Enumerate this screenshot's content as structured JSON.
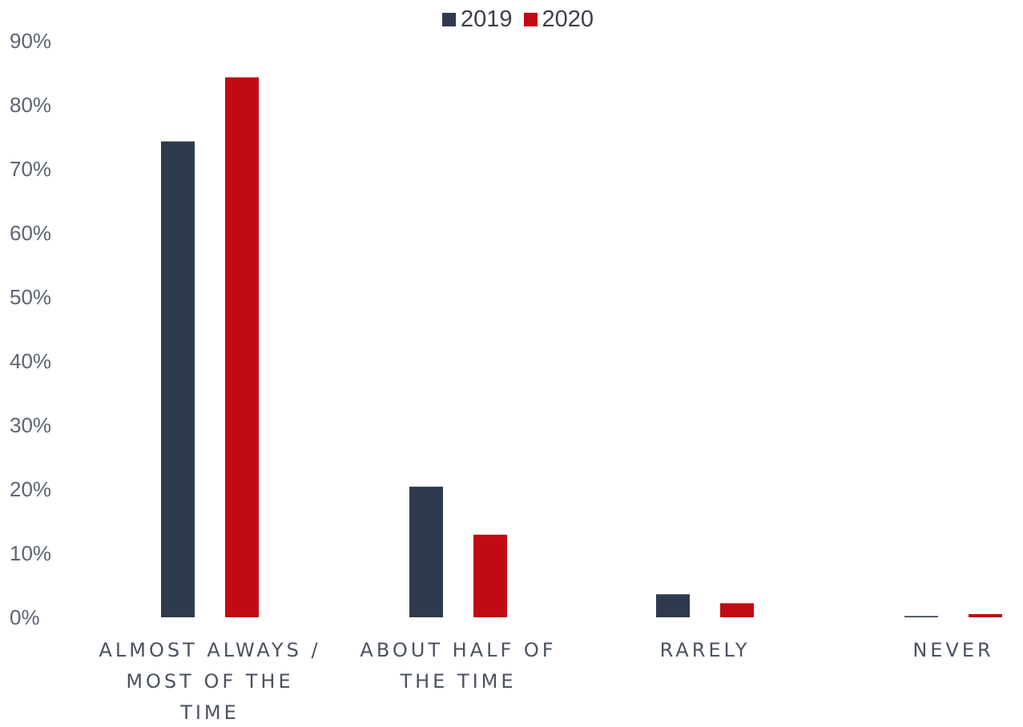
{
  "chart_data": {
    "type": "bar",
    "title": "",
    "xlabel": "",
    "ylabel": "",
    "categories": [
      [
        "ALMOST ALWAYS /",
        "MOST OF THE",
        "TIME"
      ],
      [
        "ABOUT HALF OF",
        "THE TIME"
      ],
      [
        "RARELY"
      ],
      [
        "NEVER"
      ]
    ],
    "category_names": [
      "ALMOST ALWAYS / MOST OF THE TIME",
      "ABOUT HALF OF THE TIME",
      "RARELY",
      "NEVER"
    ],
    "series": [
      {
        "name": "2019",
        "color": "#2e3b4e",
        "values": [
          74.3,
          20.4,
          3.6,
          0.2
        ]
      },
      {
        "name": "2020",
        "color": "#c10a14",
        "values": [
          84.3,
          12.9,
          2.2,
          0.5
        ]
      }
    ],
    "ylim": [
      0,
      90
    ],
    "yticks": [
      0,
      10,
      20,
      30,
      40,
      50,
      60,
      70,
      80,
      90
    ],
    "ytick_labels": [
      "0%",
      "10%",
      "20%",
      "30%",
      "40%",
      "50%",
      "60%",
      "70%",
      "80%",
      "90%"
    ],
    "grid": false,
    "legend_position": "top-center"
  }
}
